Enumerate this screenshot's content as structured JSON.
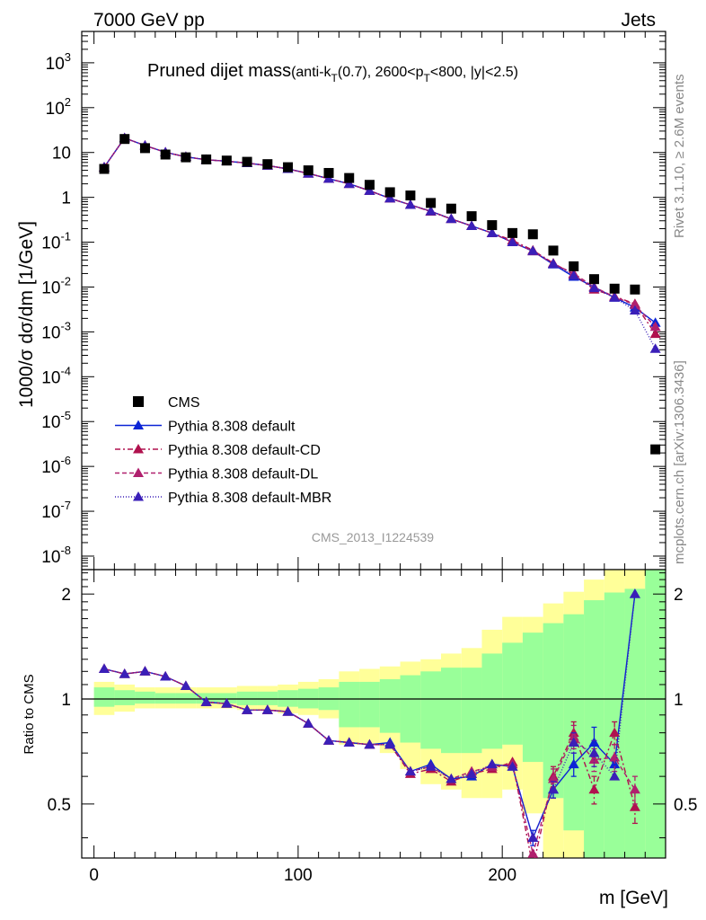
{
  "header": {
    "left": "7000 GeV pp",
    "right": "Jets"
  },
  "side_labels": {
    "rivet": "Rivet 3.1.10, ≥ 2.6M events",
    "source": "mcplots.cern.ch [arXiv:1306.3436]"
  },
  "analysis_id": "CMS_2013_I1224539",
  "colors": {
    "data": "#000000",
    "default": "#0b24d6",
    "cd": "#b0114e",
    "dl": "#b0206e",
    "mbr": "#3a1fb8",
    "band_yellow": "#ffff99",
    "band_green": "#99ff99"
  },
  "chart_data": [
    {
      "type": "scatter",
      "panel": "main",
      "title_main": "Pruned dijet mass",
      "title_sub": "(anti-k",
      "title_sub_index": "T",
      "title_sub_rest": "(0.7), 2600<p",
      "title_sub_index2": "T",
      "title_sub_end": "<800, |y|<2.5)",
      "ylabel": "1000/σ dσ/dm [1/GeV]",
      "yscale": "log",
      "ylim": [
        5e-09,
        5000
      ],
      "xlim": [
        -6,
        280
      ],
      "x": [
        5,
        15,
        25,
        35,
        45,
        55,
        65,
        75,
        85,
        95,
        105,
        115,
        125,
        135,
        145,
        155,
        165,
        175,
        185,
        195,
        205,
        215,
        225,
        235,
        245,
        255,
        265,
        275
      ],
      "series": [
        {
          "name": "CMS",
          "key": "data",
          "marker": "square",
          "values": [
            4.3,
            20.0,
            12.5,
            9.0,
            7.8,
            7.0,
            6.6,
            6.2,
            5.5,
            4.7,
            4.0,
            3.5,
            2.7,
            1.9,
            1.3,
            1.1,
            0.75,
            0.56,
            0.38,
            0.24,
            0.16,
            0.15,
            0.065,
            0.029,
            0.015,
            0.0092,
            0.0088,
            2.4e-06
          ]
        },
        {
          "name": "Pythia 8.308 default",
          "key": "default",
          "marker": "triangle",
          "dash": "",
          "values": [
            4.7,
            21.0,
            14.3,
            10.1,
            8.0,
            6.9,
            6.4,
            5.8,
            5.1,
            4.3,
            3.4,
            2.6,
            2.0,
            1.4,
            0.95,
            0.68,
            0.49,
            0.33,
            0.23,
            0.16,
            0.1,
            0.063,
            0.032,
            0.017,
            0.01,
            0.0058,
            0.0035,
            0.0016
          ]
        },
        {
          "name": "Pythia 8.308 default-CD",
          "key": "cd",
          "marker": "triangle",
          "dash": "6,3,2,3",
          "values": [
            4.7,
            21.0,
            14.3,
            10.1,
            8.0,
            6.9,
            6.4,
            5.8,
            5.1,
            4.3,
            3.4,
            2.6,
            2.0,
            1.4,
            0.95,
            0.68,
            0.48,
            0.33,
            0.23,
            0.16,
            0.11,
            0.066,
            0.034,
            0.019,
            0.0088,
            0.0062,
            0.0042,
            0.0009
          ]
        },
        {
          "name": "Pythia 8.308 default-DL",
          "key": "dl",
          "marker": "triangle",
          "dash": "5,3",
          "values": [
            4.7,
            21.0,
            14.3,
            10.1,
            8.0,
            6.9,
            6.4,
            5.8,
            5.1,
            4.3,
            3.4,
            2.6,
            2.0,
            1.4,
            0.95,
            0.68,
            0.49,
            0.33,
            0.23,
            0.16,
            0.1,
            0.063,
            0.033,
            0.02,
            0.01,
            0.006,
            0.004,
            0.0013
          ]
        },
        {
          "name": "Pythia 8.308 default-MBR",
          "key": "mbr",
          "marker": "triangle",
          "dash": "1,2",
          "values": [
            4.7,
            21.0,
            14.3,
            10.1,
            8.0,
            6.9,
            6.4,
            5.8,
            5.1,
            4.3,
            3.4,
            2.6,
            2.0,
            1.4,
            0.95,
            0.68,
            0.49,
            0.33,
            0.23,
            0.16,
            0.1,
            0.064,
            0.033,
            0.018,
            0.0095,
            0.0058,
            0.003,
            0.00042
          ]
        }
      ],
      "ytick_labels": [
        "10<sup>-8</sup>"
      ],
      "legend": "bottom-left"
    },
    {
      "type": "scatter",
      "panel": "ratio",
      "ylabel": "Ratio to CMS",
      "xlabel": "m [GeV]",
      "ylim": [
        0.35,
        2.35
      ],
      "xlim": [
        -6,
        280
      ],
      "xticks": [
        0,
        100,
        200
      ],
      "yticks": [
        0.5,
        1,
        2
      ],
      "x": [
        5,
        15,
        25,
        35,
        45,
        55,
        65,
        75,
        85,
        95,
        105,
        115,
        125,
        135,
        145,
        155,
        165,
        175,
        185,
        195,
        205,
        215,
        225,
        235,
        245,
        255,
        265
      ],
      "band_edges": [
        0,
        10,
        20,
        30,
        40,
        50,
        60,
        70,
        80,
        90,
        100,
        110,
        120,
        130,
        140,
        150,
        160,
        170,
        180,
        190,
        200,
        210,
        220,
        230,
        240,
        250,
        260,
        270,
        280
      ],
      "band_green": [
        [
          0.95,
          1.08
        ],
        [
          0.96,
          1.06
        ],
        [
          0.97,
          1.05
        ],
        [
          0.97,
          1.04
        ],
        [
          0.97,
          1.04
        ],
        [
          0.97,
          1.04
        ],
        [
          0.97,
          1.04
        ],
        [
          0.96,
          1.05
        ],
        [
          0.96,
          1.05
        ],
        [
          0.95,
          1.06
        ],
        [
          0.94,
          1.07
        ],
        [
          0.93,
          1.08
        ],
        [
          0.83,
          1.12
        ],
        [
          0.83,
          1.12
        ],
        [
          0.8,
          1.14
        ],
        [
          0.75,
          1.17
        ],
        [
          0.72,
          1.2
        ],
        [
          0.7,
          1.23
        ],
        [
          0.7,
          1.23
        ],
        [
          0.72,
          1.35
        ],
        [
          0.74,
          1.45
        ],
        [
          0.66,
          1.55
        ],
        [
          0.52,
          1.65
        ],
        [
          0.42,
          1.75
        ],
        [
          0.35,
          1.92
        ],
        [
          0.35,
          2.02
        ],
        [
          0.35,
          2.07
        ],
        [
          0.35,
          2.35
        ]
      ],
      "band_yellow": [
        [
          0.9,
          1.12
        ],
        [
          0.92,
          1.1
        ],
        [
          0.94,
          1.08
        ],
        [
          0.94,
          1.08
        ],
        [
          0.94,
          1.08
        ],
        [
          0.94,
          1.08
        ],
        [
          0.94,
          1.08
        ],
        [
          0.93,
          1.09
        ],
        [
          0.93,
          1.09
        ],
        [
          0.91,
          1.1
        ],
        [
          0.9,
          1.12
        ],
        [
          0.88,
          1.14
        ],
        [
          0.74,
          1.2
        ],
        [
          0.74,
          1.22
        ],
        [
          0.7,
          1.24
        ],
        [
          0.63,
          1.28
        ],
        [
          0.57,
          1.3
        ],
        [
          0.55,
          1.35
        ],
        [
          0.52,
          1.4
        ],
        [
          0.52,
          1.58
        ],
        [
          0.55,
          1.72
        ],
        [
          0.47,
          1.72
        ],
        [
          0.35,
          1.88
        ],
        [
          0.35,
          2.03
        ],
        [
          0.35,
          2.2
        ],
        [
          0.35,
          2.35
        ],
        [
          0.35,
          2.35
        ],
        [
          0.35,
          2.35
        ]
      ],
      "series": [
        {
          "name": "Pythia 8.308 default",
          "key": "default",
          "dash": "",
          "values": [
            1.22,
            1.18,
            1.2,
            1.16,
            1.09,
            0.98,
            0.97,
            0.93,
            0.93,
            0.92,
            0.85,
            0.76,
            0.75,
            0.74,
            0.75,
            0.62,
            0.65,
            0.59,
            0.6,
            0.65,
            0.64,
            0.4,
            0.55,
            0.65,
            0.75,
            0.65,
            2.0
          ],
          "errors": [
            0,
            0,
            0,
            0,
            0,
            0,
            0,
            0,
            0,
            0,
            0,
            0,
            0,
            0,
            0,
            0,
            0,
            0,
            0,
            0,
            0,
            0.02,
            0.03,
            0.05,
            0.08,
            0,
            0
          ]
        },
        {
          "name": "Pythia 8.308 default-CD",
          "key": "cd",
          "dash": "6,3,2,3",
          "values": [
            1.22,
            1.18,
            1.2,
            1.16,
            1.09,
            0.98,
            0.97,
            0.93,
            0.93,
            0.92,
            0.85,
            0.76,
            0.75,
            0.74,
            0.74,
            0.61,
            0.63,
            0.58,
            0.61,
            0.63,
            0.66,
            0.33,
            0.6,
            0.8,
            0.55,
            0.8,
            0.49
          ],
          "errors": [
            0,
            0,
            0,
            0,
            0,
            0,
            0,
            0,
            0,
            0,
            0,
            0,
            0,
            0,
            0,
            0,
            0,
            0,
            0,
            0,
            0,
            0,
            0.04,
            0.06,
            0.05,
            0.06,
            0.05
          ]
        },
        {
          "name": "Pythia 8.308 default-DL",
          "key": "dl",
          "dash": "5,3",
          "values": [
            1.22,
            1.18,
            1.2,
            1.16,
            1.09,
            0.98,
            0.97,
            0.93,
            0.93,
            0.92,
            0.85,
            0.76,
            0.75,
            0.74,
            0.74,
            0.62,
            0.64,
            0.59,
            0.62,
            0.64,
            0.65,
            0.36,
            0.59,
            0.78,
            0.67,
            0.68,
            0.55
          ],
          "errors": [
            0,
            0,
            0,
            0,
            0,
            0,
            0,
            0,
            0,
            0,
            0,
            0,
            0,
            0,
            0,
            0,
            0,
            0,
            0,
            0,
            0,
            0,
            0.04,
            0.06,
            0.05,
            0.06,
            0.05
          ]
        },
        {
          "name": "Pythia 8.308 default-MBR",
          "key": "mbr",
          "dash": "1,2",
          "values": [
            1.22,
            1.18,
            1.2,
            1.16,
            1.09,
            0.98,
            0.97,
            0.93,
            0.93,
            0.92,
            0.85,
            0.76,
            0.75,
            0.74,
            0.74,
            0.62,
            0.64,
            0.59,
            0.61,
            0.65,
            0.64,
            0.4,
            0.55,
            0.75,
            0.7,
            0.6,
            2.0
          ],
          "errors": [
            0,
            0,
            0,
            0,
            0,
            0,
            0,
            0,
            0,
            0,
            0,
            0,
            0,
            0,
            0,
            0,
            0,
            0,
            0,
            0,
            0,
            0,
            0.03,
            0.05,
            0.06,
            0,
            0
          ]
        }
      ]
    }
  ]
}
